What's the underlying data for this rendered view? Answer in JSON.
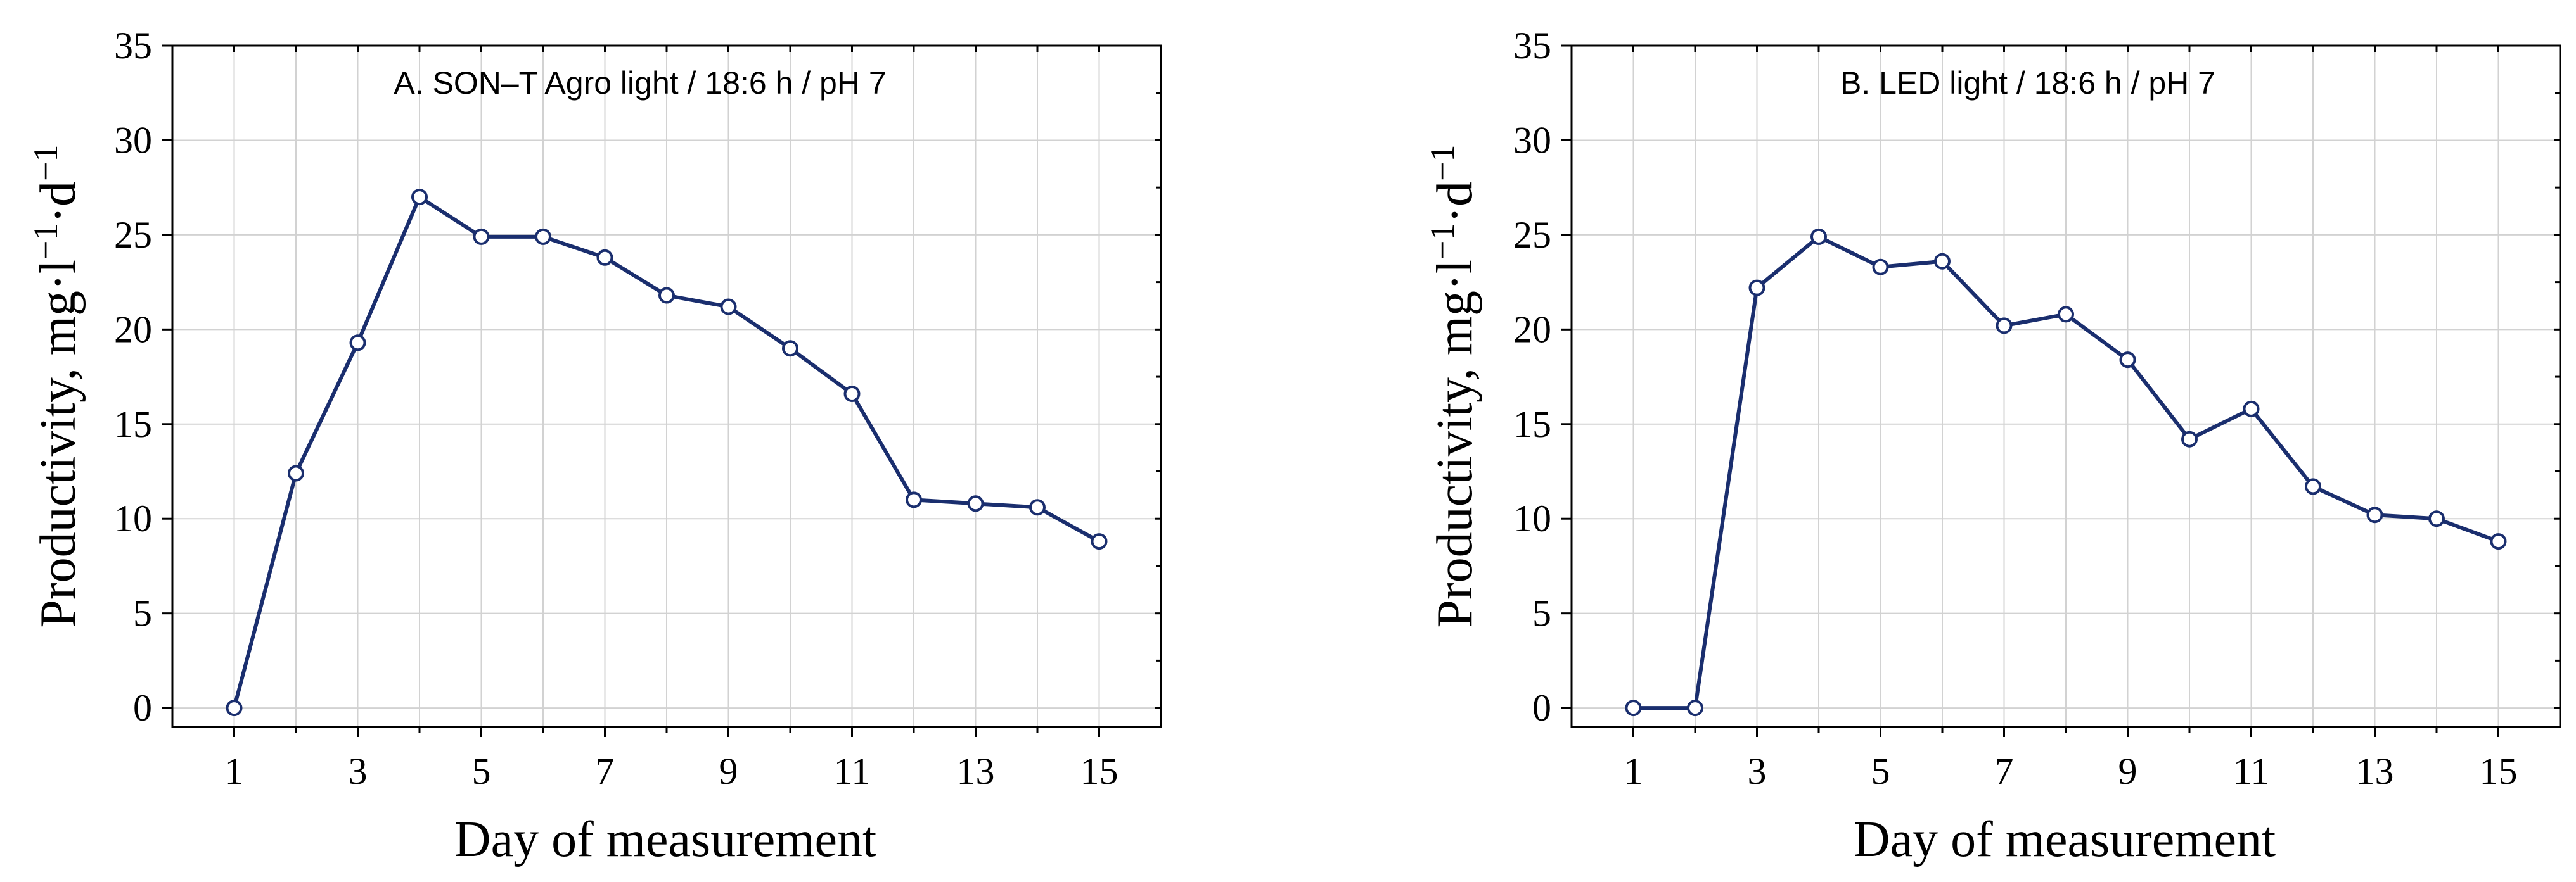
{
  "chart_data": [
    {
      "type": "line",
      "title": "A. SON–T Agro light / 18:6 h / pH 7",
      "xlabel": "Day of measurement",
      "ylabel_main": "Productivity,  mg·l",
      "ylabel_sup1": "−1",
      "ylabel_mid": "·d",
      "ylabel_sup2": "−1",
      "x": [
        1,
        2,
        3,
        4,
        5,
        6,
        7,
        8,
        9,
        10,
        11,
        12,
        13,
        14,
        15
      ],
      "values": [
        0,
        12.4,
        19.3,
        27.0,
        24.9,
        24.9,
        23.8,
        21.8,
        21.2,
        19.0,
        16.6,
        11.0,
        10.8,
        10.6,
        8.8
      ],
      "xticks": [
        1,
        3,
        5,
        7,
        9,
        11,
        13,
        15
      ],
      "yticks": [
        0,
        5,
        10,
        15,
        20,
        25,
        30,
        35
      ],
      "xlim": [
        0,
        16
      ],
      "ylim": [
        -1,
        35
      ],
      "grid": true,
      "line_color": "#1a2e6e"
    },
    {
      "type": "line",
      "title": "B. LED light / 18:6 h / pH 7",
      "xlabel": "Day of measurement",
      "ylabel_main": "Productivity,  mg·l",
      "ylabel_sup1": "−1",
      "ylabel_mid": "·d",
      "ylabel_sup2": "−1",
      "x": [
        1,
        2,
        3,
        4,
        5,
        6,
        7,
        8,
        9,
        10,
        11,
        12,
        13,
        14,
        15
      ],
      "values": [
        0,
        0,
        22.2,
        24.9,
        23.3,
        23.6,
        20.2,
        20.8,
        18.4,
        14.2,
        15.8,
        11.7,
        10.2,
        10.0,
        8.8
      ],
      "xticks": [
        1,
        3,
        5,
        7,
        9,
        11,
        13,
        15
      ],
      "yticks": [
        0,
        5,
        10,
        15,
        20,
        25,
        30,
        35
      ],
      "xlim": [
        0,
        16
      ],
      "ylim": [
        -1,
        35
      ],
      "grid": true,
      "line_color": "#1a2e6e"
    }
  ]
}
